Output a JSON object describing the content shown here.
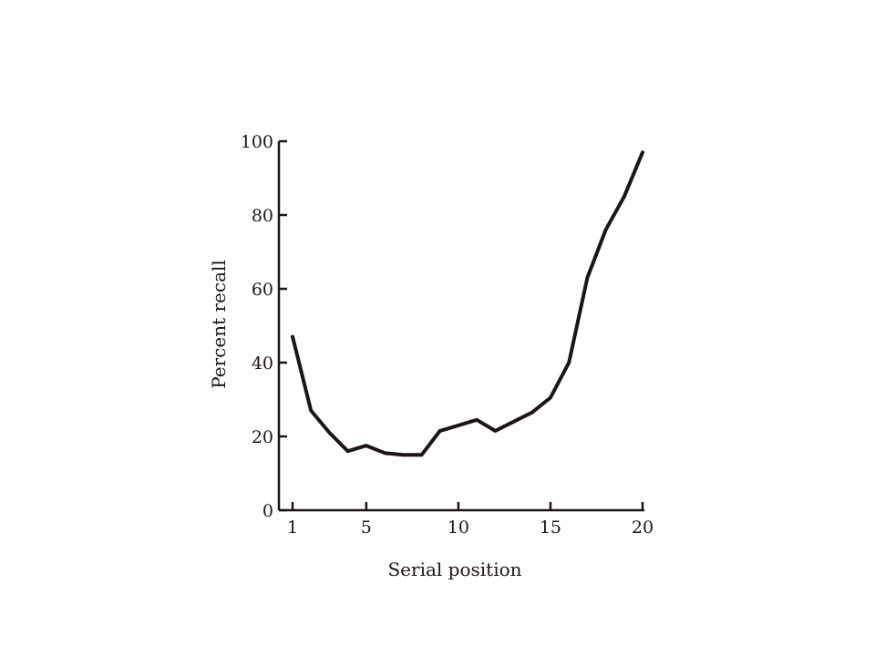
{
  "chart_data": {
    "type": "line",
    "title": "",
    "xlabel": "Serial position",
    "ylabel": "Percent recall",
    "xlim": [
      1,
      20
    ],
    "ylim": [
      0,
      100
    ],
    "xticks": [
      1,
      5,
      10,
      15,
      20
    ],
    "yticks": [
      0,
      20,
      40,
      60,
      80,
      100
    ],
    "grid": false,
    "x": [
      1,
      2,
      3,
      4,
      5,
      6,
      7,
      8,
      9,
      10,
      11,
      12,
      13,
      14,
      15,
      16,
      17,
      18,
      19,
      20
    ],
    "series": [
      {
        "values": [
          47,
          27,
          21,
          16,
          17.5,
          15.5,
          15,
          15,
          21.5,
          23,
          24.5,
          21.5,
          24,
          26.5,
          30.5,
          40,
          63,
          76,
          85,
          97
        ],
        "color": "#1c1418"
      }
    ]
  }
}
